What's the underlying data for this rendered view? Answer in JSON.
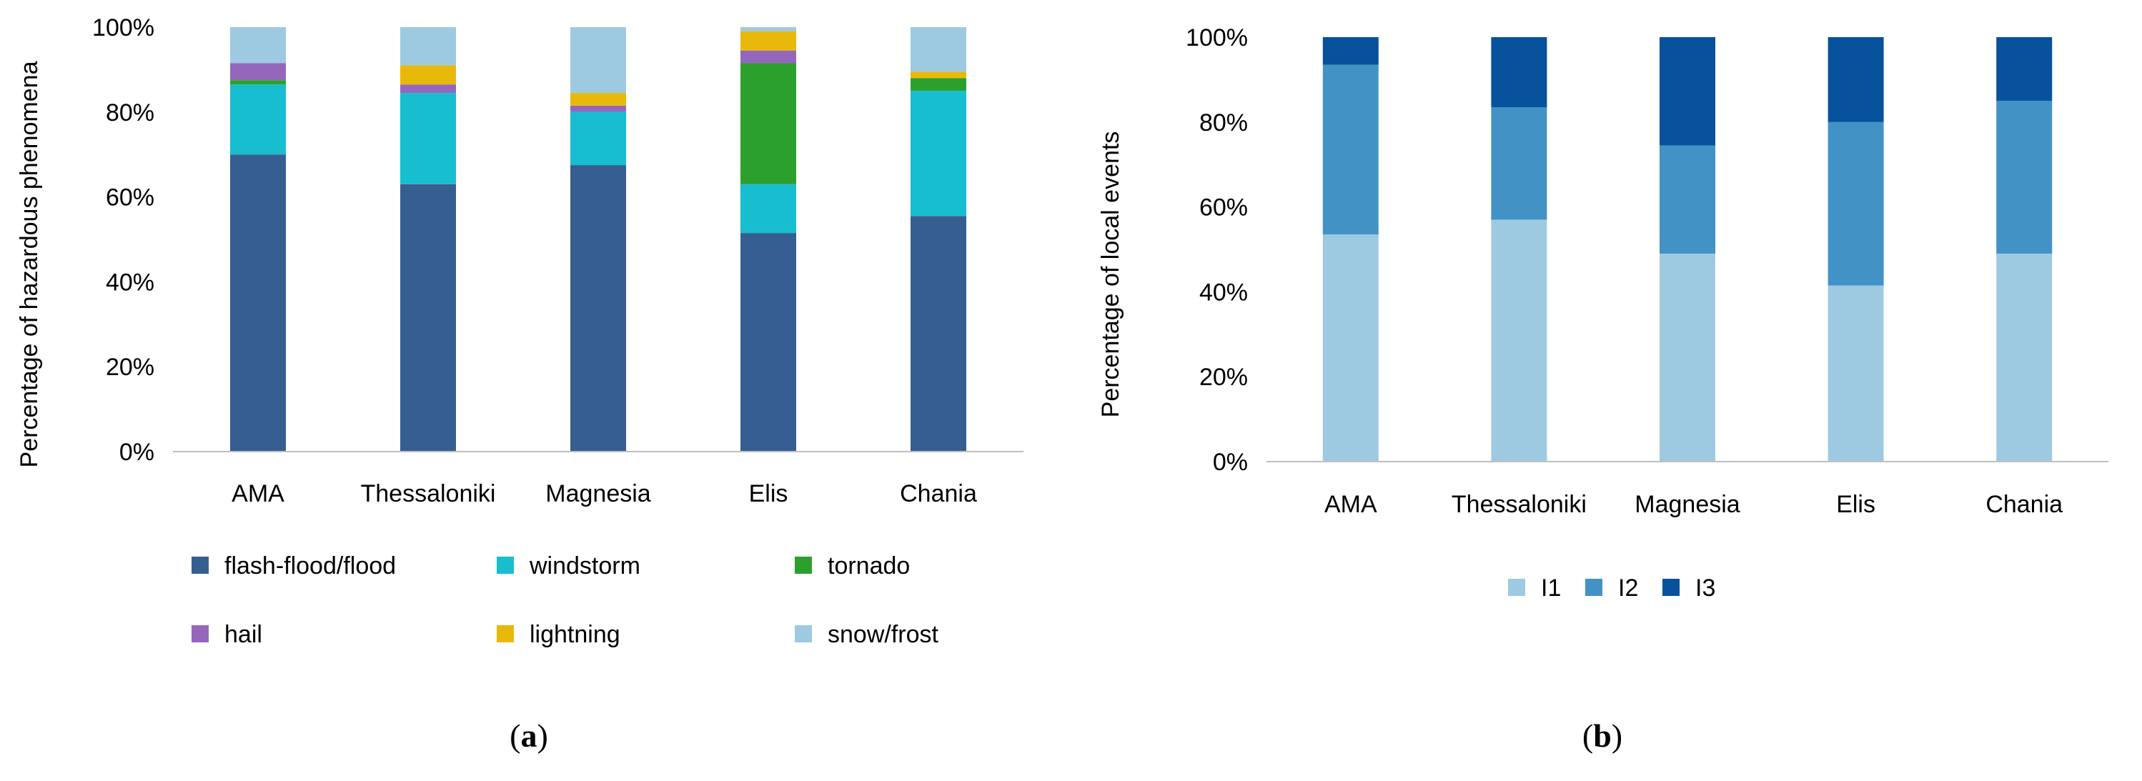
{
  "chart_data": [
    {
      "type": "bar",
      "stacked": true,
      "percent": true,
      "panel_label": "a",
      "ylabel": "Percentage of hazardous phenomena",
      "ylim": [
        0,
        100
      ],
      "yticks": [
        "0%",
        "20%",
        "40%",
        "60%",
        "80%",
        "100%"
      ],
      "categories": [
        "AMA",
        "Thessaloniki",
        "Magnesia",
        "Elis",
        "Chania"
      ],
      "legend_position": "bottom",
      "series": [
        {
          "name": "flash-flood/flood",
          "color": "#375e91",
          "values": [
            70,
            63,
            67.5,
            51.5,
            55.5
          ]
        },
        {
          "name": "windstorm",
          "color": "#17becf",
          "values": [
            16.5,
            21.5,
            12.5,
            11.5,
            29.5
          ]
        },
        {
          "name": "tornado",
          "color": "#2ca02c",
          "values": [
            1,
            0,
            0,
            28.5,
            3
          ]
        },
        {
          "name": "hail",
          "color": "#9467bd",
          "values": [
            4,
            2,
            1.5,
            3,
            0
          ]
        },
        {
          "name": "lightning",
          "color": "#e8b90b",
          "values": [
            0,
            4.5,
            3,
            4.5,
            1.5
          ]
        },
        {
          "name": "snow/frost",
          "color": "#9ecae1",
          "values": [
            8.5,
            9,
            15.5,
            1,
            10.5
          ]
        }
      ]
    },
    {
      "type": "bar",
      "stacked": true,
      "percent": true,
      "panel_label": "b",
      "ylabel": "Percentage of local events",
      "ylim": [
        0,
        100
      ],
      "yticks": [
        "0%",
        "20%",
        "40%",
        "60%",
        "80%",
        "100%"
      ],
      "categories": [
        "AMA",
        "Thessaloniki",
        "Magnesia",
        "Elis",
        "Chania"
      ],
      "legend_position": "bottom",
      "series": [
        {
          "name": "I1",
          "color": "#9ecae1",
          "values": [
            53.5,
            57,
            49,
            41.5,
            49
          ]
        },
        {
          "name": "I2",
          "color": "#4292c6",
          "values": [
            40,
            26.5,
            25.5,
            38.5,
            36
          ]
        },
        {
          "name": "I3",
          "color": "#08519c",
          "values": [
            6.5,
            16.5,
            25.5,
            20,
            15
          ]
        }
      ]
    }
  ]
}
